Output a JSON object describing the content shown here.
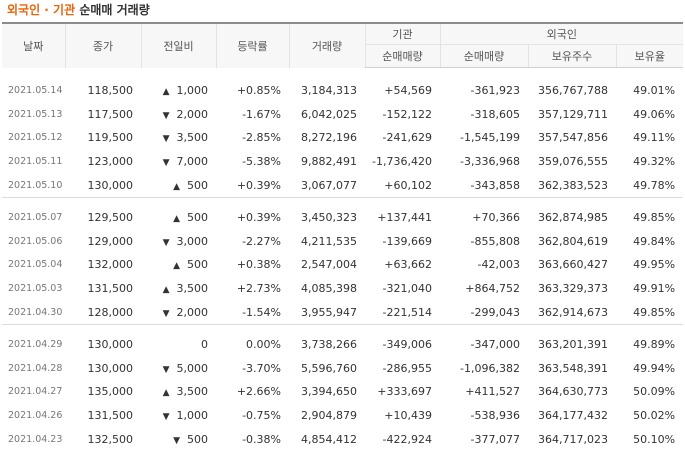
{
  "title": {
    "part1": "외국인 · 기관",
    "part2": "순매매 거래량"
  },
  "headers": {
    "date": "날짜",
    "close": "종가",
    "change": "전일비",
    "rate": "등락률",
    "volume": "거래량",
    "inst_group": "기관",
    "foreign_group": "외국인",
    "inst_net": "순매매량",
    "foreign_net": "순매매량",
    "foreign_shares": "보유주수",
    "foreign_ratio": "보유율"
  },
  "colors": {
    "up": "#d9001b",
    "down": "#1a5bc4",
    "flat": "#333333"
  },
  "groups": [
    {
      "rows": [
        {
          "date": "2021.05.14",
          "close": "118,500",
          "dir": "up",
          "change": "1,000",
          "rate": "+0.85%",
          "volume": "3,184,313",
          "inst": "+54,569",
          "foreign": "-361,923",
          "shares": "356,767,788",
          "ratio": "49.01%"
        },
        {
          "date": "2021.05.13",
          "close": "117,500",
          "dir": "down",
          "change": "2,000",
          "rate": "-1.67%",
          "volume": "6,042,025",
          "inst": "-152,122",
          "foreign": "-318,605",
          "shares": "357,129,711",
          "ratio": "49.06%"
        },
        {
          "date": "2021.05.12",
          "close": "119,500",
          "dir": "down",
          "change": "3,500",
          "rate": "-2.85%",
          "volume": "8,272,196",
          "inst": "-241,629",
          "foreign": "-1,545,199",
          "shares": "357,547,856",
          "ratio": "49.11%"
        },
        {
          "date": "2021.05.11",
          "close": "123,000",
          "dir": "down",
          "change": "7,000",
          "rate": "-5.38%",
          "volume": "9,882,491",
          "inst": "-1,736,420",
          "foreign": "-3,336,968",
          "shares": "359,076,555",
          "ratio": "49.32%"
        },
        {
          "date": "2021.05.10",
          "close": "130,000",
          "dir": "up",
          "change": "500",
          "rate": "+0.39%",
          "volume": "3,067,077",
          "inst": "+60,102",
          "foreign": "-343,858",
          "shares": "362,383,523",
          "ratio": "49.78%"
        }
      ]
    },
    {
      "rows": [
        {
          "date": "2021.05.07",
          "close": "129,500",
          "dir": "up",
          "change": "500",
          "rate": "+0.39%",
          "volume": "3,450,323",
          "inst": "+137,441",
          "foreign": "+70,366",
          "shares": "362,874,985",
          "ratio": "49.85%"
        },
        {
          "date": "2021.05.06",
          "close": "129,000",
          "dir": "down",
          "change": "3,000",
          "rate": "-2.27%",
          "volume": "4,211,535",
          "inst": "-139,669",
          "foreign": "-855,808",
          "shares": "362,804,619",
          "ratio": "49.84%"
        },
        {
          "date": "2021.05.04",
          "close": "132,000",
          "dir": "up",
          "change": "500",
          "rate": "+0.38%",
          "volume": "2,547,004",
          "inst": "+63,662",
          "foreign": "-42,003",
          "shares": "363,660,427",
          "ratio": "49.95%"
        },
        {
          "date": "2021.05.03",
          "close": "131,500",
          "dir": "up",
          "change": "3,500",
          "rate": "+2.73%",
          "volume": "4,085,398",
          "inst": "-321,040",
          "foreign": "+864,752",
          "shares": "363,329,373",
          "ratio": "49.91%"
        },
        {
          "date": "2021.04.30",
          "close": "128,000",
          "dir": "down",
          "change": "2,000",
          "rate": "-1.54%",
          "volume": "3,955,947",
          "inst": "-221,514",
          "foreign": "-299,043",
          "shares": "362,914,673",
          "ratio": "49.85%"
        }
      ]
    },
    {
      "rows": [
        {
          "date": "2021.04.29",
          "close": "130,000",
          "dir": "flat",
          "change": "0",
          "rate": "0.00%",
          "volume": "3,738,266",
          "inst": "-349,006",
          "foreign": "-347,000",
          "shares": "363,201,391",
          "ratio": "49.89%"
        },
        {
          "date": "2021.04.28",
          "close": "130,000",
          "dir": "down",
          "change": "5,000",
          "rate": "-3.70%",
          "volume": "5,596,760",
          "inst": "-286,955",
          "foreign": "-1,096,382",
          "shares": "363,548,391",
          "ratio": "49.94%"
        },
        {
          "date": "2021.04.27",
          "close": "135,000",
          "dir": "up",
          "change": "3,500",
          "rate": "+2.66%",
          "volume": "3,394,650",
          "inst": "+333,697",
          "foreign": "+411,527",
          "shares": "364,630,773",
          "ratio": "50.09%"
        },
        {
          "date": "2021.04.26",
          "close": "131,500",
          "dir": "down",
          "change": "1,000",
          "rate": "-0.75%",
          "volume": "2,904,879",
          "inst": "+10,439",
          "foreign": "-538,936",
          "shares": "364,177,432",
          "ratio": "50.02%"
        },
        {
          "date": "2021.04.23",
          "close": "132,500",
          "dir": "down",
          "change": "500",
          "rate": "-0.38%",
          "volume": "4,854,412",
          "inst": "-422,924",
          "foreign": "-377,077",
          "shares": "364,717,023",
          "ratio": "50.10%"
        }
      ]
    }
  ]
}
